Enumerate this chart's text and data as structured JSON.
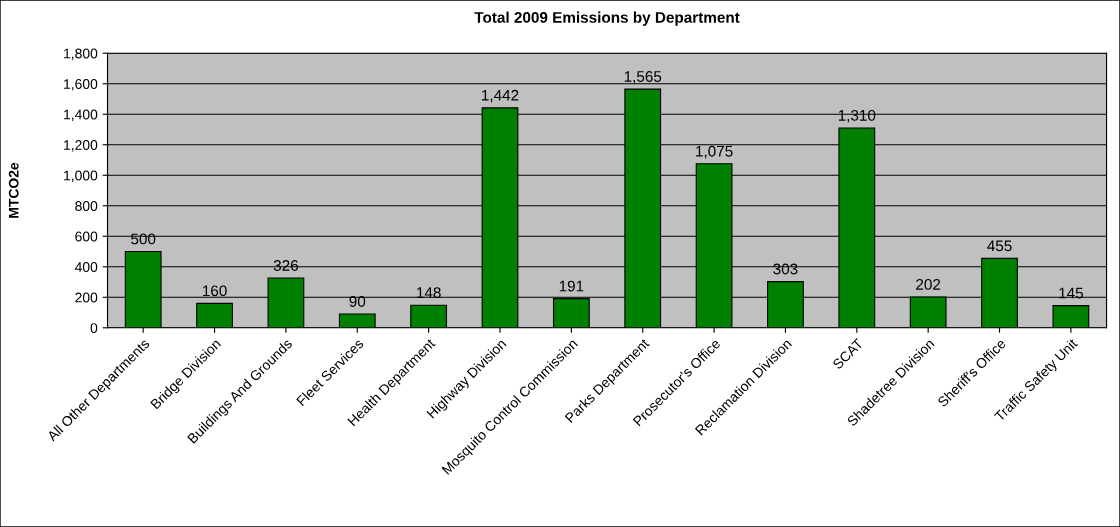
{
  "chart_data": {
    "type": "bar",
    "title": "Total 2009 Emissions by Department",
    "ylabel": "MTCO2e",
    "categories": [
      "All Other Departments",
      "Bridge Division",
      "Buildings And Grounds",
      "Fleet Services",
      "Health Department",
      "Highway Division",
      "Mosquito Control Commission",
      "Parks Department",
      "Prosecutor's Office",
      "Reclamation Division",
      "SCAT",
      "Shadetree Division",
      "Sheriff's Office",
      "Traffic Safety Unit"
    ],
    "values": [
      500,
      160,
      326,
      90,
      148,
      1442,
      191,
      1565,
      1075,
      303,
      1310,
      202,
      455,
      145
    ],
    "value_labels": [
      "500",
      "160",
      "326",
      "90",
      "148",
      "1,442",
      "191",
      "1,565",
      "1,075",
      "303",
      "1,310",
      "202",
      "455",
      "145"
    ],
    "color": "#008000",
    "ylim": [
      0,
      1800
    ],
    "yticks": [
      0,
      {
        "value": 200,
        "label": "200"
      },
      {
        "value": 400,
        "label": "400"
      },
      {
        "value": 600,
        "label": "600"
      },
      {
        "value": 800,
        "label": "800"
      },
      {
        "value": 1000,
        "label": "1,000"
      },
      {
        "value": 1200,
        "label": "1,200"
      },
      {
        "value": 1400,
        "label": "1,400"
      },
      {
        "value": 1600,
        "label": "1,600"
      },
      {
        "value": 1800,
        "label": "1,800"
      }
    ],
    "grid": "y"
  }
}
